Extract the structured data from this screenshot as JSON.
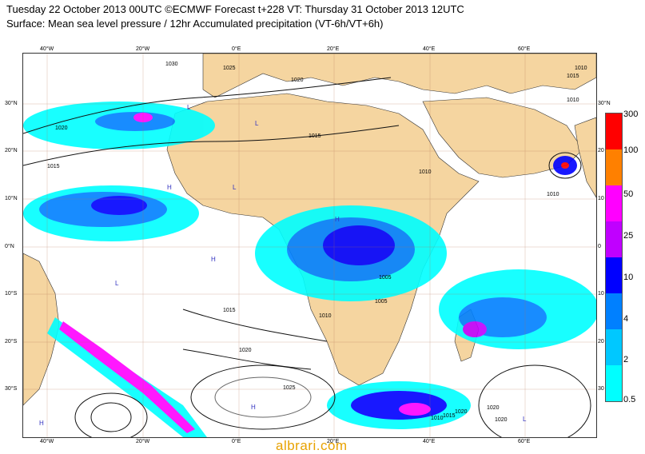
{
  "title": {
    "line1": "Tuesday 22 October 2013 00UTC ©ECMWF Forecast t+228 VT: Thursday 31 October 2013 12UTC",
    "line2": "Surface: Mean sea level pressure / 12hr Accumulated precipitation (VT-6h/VT+6h)"
  },
  "axes": {
    "lon_labels": [
      "40°W",
      "20°W",
      "0°E",
      "20°E",
      "40°E",
      "60°E"
    ],
    "lat_labels": [
      "30°N",
      "20°N",
      "10°N",
      "0°N",
      "10°S",
      "20°S",
      "30°S"
    ],
    "lat_labels_right": [
      "30°N",
      "20",
      "10",
      "0",
      "10",
      "20",
      "30"
    ]
  },
  "legend": {
    "levels": [
      "300",
      "100",
      "50",
      "25",
      "10",
      "4",
      "2",
      "0.5"
    ],
    "colors": [
      "#ff0000",
      "#ff8000",
      "#ff00ff",
      "#c000ff",
      "#0000ff",
      "#0080ff",
      "#00c8ff",
      "#00ffff"
    ]
  },
  "map": {
    "land_color": "#f5d5a0",
    "sea_color": "#ffffff",
    "isobar_labels": [
      "1030",
      "1025",
      "1020",
      "1015",
      "1015",
      "1010",
      "1020",
      "1025",
      "1010",
      "1015",
      "1020",
      "1020",
      "1015",
      "1010",
      "1005",
      "1010",
      "1005",
      "1020",
      "1010",
      "1015",
      "1010",
      "1020"
    ],
    "pressure_centers": [
      "H",
      "H",
      "H",
      "H",
      "L",
      "L",
      "L",
      "L",
      "H",
      "L"
    ]
  },
  "watermark": "albrari.com"
}
